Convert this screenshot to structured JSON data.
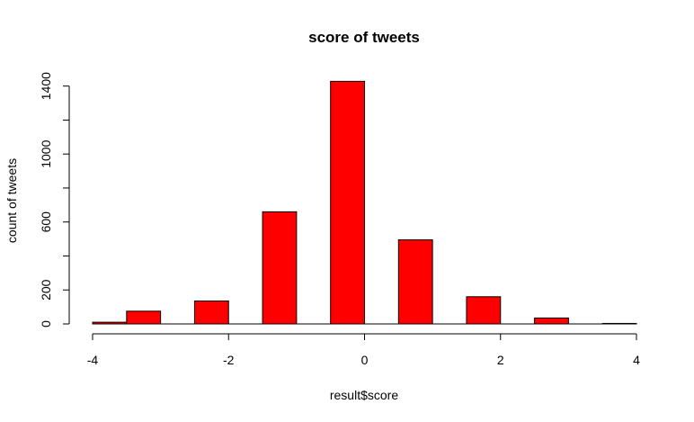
{
  "chart_data": {
    "type": "bar",
    "title": "score of tweets",
    "xlabel": "result$score",
    "ylabel": "count of tweets",
    "xlim": [
      -4,
      4
    ],
    "ylim": [
      0,
      1430
    ],
    "x_ticks": [
      "-4",
      "-2",
      "0",
      "2",
      "4"
    ],
    "y_ticks": [
      "0",
      "200",
      "600",
      "1000",
      "1400"
    ],
    "y_minor_ticks": [
      400,
      800,
      1200
    ],
    "bins": [
      {
        "x0": -4.0,
        "x1": -3.5,
        "value": 10
      },
      {
        "x0": -3.5,
        "x1": -3.0,
        "value": 75
      },
      {
        "x0": -2.5,
        "x1": -2.0,
        "value": 135
      },
      {
        "x0": -1.5,
        "x1": -1.0,
        "value": 660
      },
      {
        "x0": -0.5,
        "x1": 0.0,
        "value": 1428
      },
      {
        "x0": 0.5,
        "x1": 1.0,
        "value": 495
      },
      {
        "x0": 1.5,
        "x1": 2.0,
        "value": 160
      },
      {
        "x0": 2.5,
        "x1": 3.0,
        "value": 35
      },
      {
        "x0": 3.5,
        "x1": 4.0,
        "value": 3
      }
    ],
    "bar_color": "#ff0000",
    "grid": false
  }
}
